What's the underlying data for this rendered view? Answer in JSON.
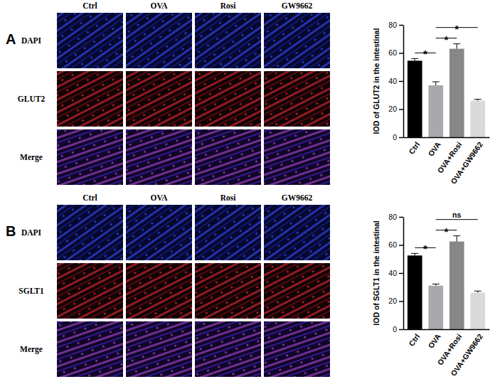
{
  "figure": {
    "panels": [
      {
        "letter": "A",
        "columns": [
          "Ctrl",
          "OVA",
          "Rosi",
          "GW9662"
        ],
        "rows": [
          "DAPI",
          "GLUT2",
          "Merge"
        ]
      },
      {
        "letter": "B",
        "columns": [
          "Ctrl",
          "OVA",
          "Rosi",
          "GW9662"
        ],
        "rows": [
          "DAPI",
          "SGLT1",
          "Merge"
        ]
      }
    ]
  },
  "chart_data": [
    {
      "type": "bar",
      "y_label": "IOD of GLUT2 in the intestinal",
      "categories": [
        "Ctrl",
        "OVA",
        "OVA+Rosi",
        "OVA+GW9662"
      ],
      "values": [
        54.5,
        37,
        63,
        26
      ],
      "errors": [
        1.5,
        2.5,
        3.5,
        1
      ],
      "colors": [
        "#000000",
        "#a8a8ad",
        "#878787",
        "#d9d9d9"
      ],
      "ylim": [
        0,
        80
      ],
      "yticks": [
        0,
        20,
        40,
        60,
        80
      ],
      "annotations": [
        {
          "text": "*",
          "between": [
            "Ctrl",
            "OVA"
          ]
        },
        {
          "text": "*",
          "between": [
            "OVA",
            "OVA+Rosi"
          ]
        },
        {
          "text": "*",
          "between": [
            "OVA",
            "OVA+GW9662"
          ]
        }
      ]
    },
    {
      "type": "bar",
      "y_label": "IOD of SGLT1 in the intestinal",
      "categories": [
        "Ctrl",
        "OVA",
        "OVA+Rosi",
        "OVA+GW9662"
      ],
      "values": [
        52.5,
        31,
        62.5,
        26
      ],
      "errors": [
        1.5,
        1.2,
        4,
        1.2
      ],
      "colors": [
        "#000000",
        "#a8a8ad",
        "#878787",
        "#d9d9d9"
      ],
      "ylim": [
        0,
        80
      ],
      "yticks": [
        0,
        20,
        40,
        60,
        80
      ],
      "annotations": [
        {
          "text": "*",
          "between": [
            "Ctrl",
            "OVA"
          ]
        },
        {
          "text": "*",
          "between": [
            "OVA",
            "OVA+Rosi"
          ]
        },
        {
          "text": "ns",
          "between": [
            "OVA",
            "OVA+GW9662"
          ]
        }
      ]
    }
  ]
}
